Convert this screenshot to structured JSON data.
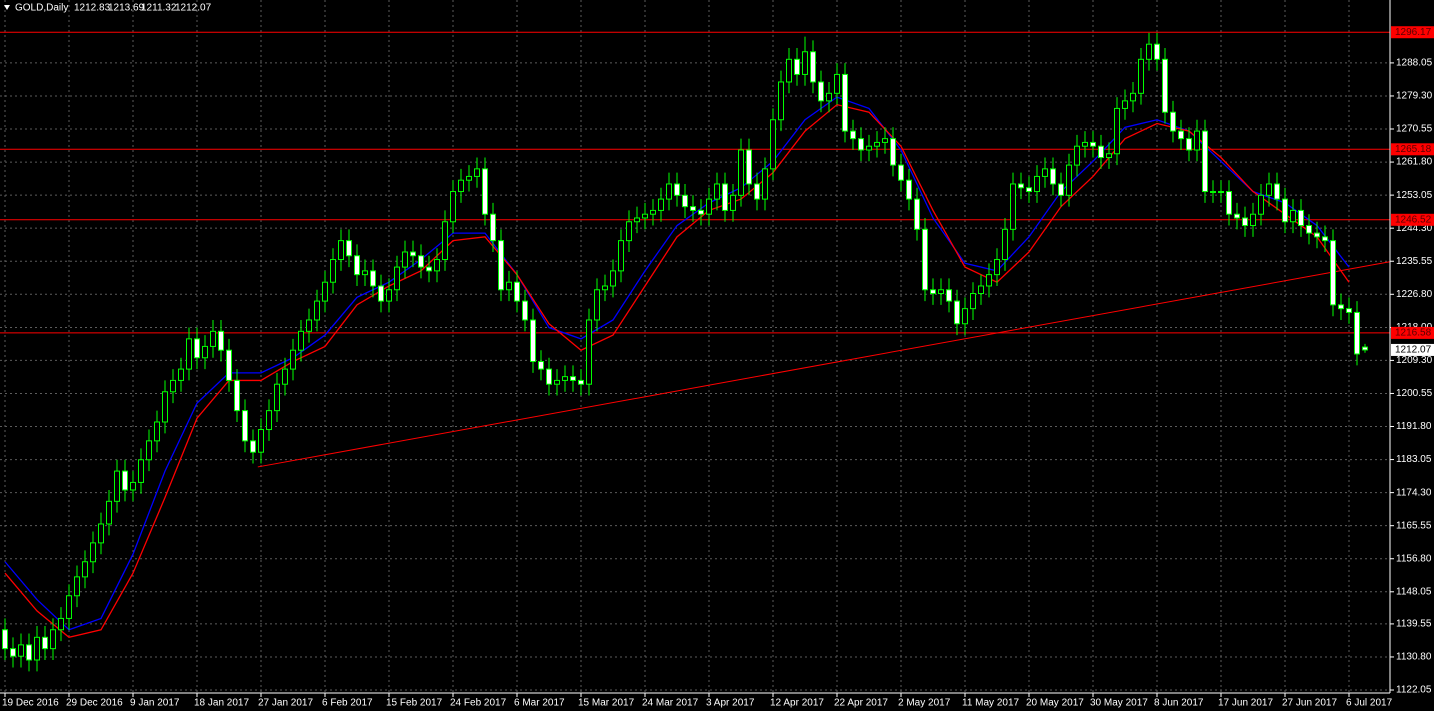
{
  "chart_data": {
    "type": "candlestick",
    "title": "GOLD,Daily",
    "categories": [
      "19 Dec 2016",
      null,
      null,
      null,
      null,
      null,
      null,
      null,
      "29 Dec 2016",
      null,
      null,
      null,
      null,
      null,
      null,
      null,
      "9 Jan 2017",
      null,
      null,
      null,
      null,
      null,
      null,
      null,
      "18 Jan 2017",
      null,
      null,
      null,
      null,
      null,
      null,
      null,
      "27 Jan 2017",
      null,
      null,
      null,
      null,
      null,
      null,
      null,
      "6 Feb 2017",
      null,
      null,
      null,
      null,
      null,
      null,
      null,
      "15 Feb 2017",
      null,
      null,
      null,
      null,
      null,
      null,
      null,
      "24 Feb 2017",
      null,
      null,
      null,
      null,
      null,
      null,
      null,
      "6 Mar 2017",
      null,
      null,
      null,
      null,
      null,
      null,
      null,
      "15 Mar 2017",
      null,
      null,
      null,
      null,
      null,
      null,
      null,
      "24 Mar 2017",
      null,
      null,
      null,
      null,
      null,
      null,
      null,
      "3 Apr 2017",
      null,
      null,
      null,
      null,
      null,
      null,
      null,
      "12 Apr 2017",
      null,
      null,
      null,
      null,
      null,
      null,
      null,
      "22 Apr 2017",
      null,
      null,
      null,
      null,
      null,
      null,
      null,
      "2 May 2017",
      null,
      null,
      null,
      null,
      null,
      null,
      null,
      "11 May 2017",
      null,
      null,
      null,
      null,
      null,
      null,
      null,
      "20 May 2017",
      null,
      null,
      null,
      null,
      null,
      null,
      null,
      "30 May 2017",
      null,
      null,
      null,
      null,
      null,
      null,
      null,
      "8 Jun 2017",
      null,
      null,
      null,
      null,
      null,
      null,
      null,
      "17 Jun 2017",
      null,
      null,
      null,
      null,
      null,
      null,
      null,
      "27 Jun 2017",
      null,
      null,
      null,
      null,
      null,
      null,
      null,
      "6 Jul 2017",
      null,
      null
    ],
    "open": [
      1138,
      1133,
      1131,
      1134,
      1130,
      1136,
      1133,
      1138,
      1141,
      1147,
      1152,
      1156,
      1161,
      1166,
      1172,
      1180,
      1175,
      1177,
      1183,
      1188,
      1193,
      1201,
      1204,
      1207,
      1215,
      1210,
      1213,
      1217,
      1212,
      1204,
      1196,
      1188,
      1185,
      1191,
      1196,
      1203,
      1207,
      1212,
      1217,
      1220,
      1225,
      1230,
      1236,
      1241,
      1237,
      1232,
      1233,
      1229,
      1225,
      1228,
      1234,
      1238,
      1237,
      1234,
      1233,
      1236,
      1246,
      1254,
      1257,
      1258,
      1260,
      1248,
      1241,
      1228,
      1230,
      1225,
      1220,
      1209,
      1207,
      1203,
      1204,
      1205,
      1204,
      1203,
      1220,
      1228,
      1229,
      1233,
      1241,
      1246,
      1247,
      1248,
      1249,
      1252,
      1256,
      1253,
      1250,
      1249,
      1248,
      1252,
      1256,
      1249,
      1253,
      1265,
      1256,
      1252,
      1260,
      1273,
      1283,
      1289,
      1285,
      1291,
      1283,
      1278,
      1280,
      1285,
      1270,
      1268,
      1265,
      1266,
      1267,
      1268,
      1261,
      1257,
      1252,
      1244,
      1228,
      1227,
      1228,
      1225,
      1219,
      1223,
      1227,
      1229,
      1232,
      1236,
      1244,
      1256,
      1255,
      1254,
      1258,
      1260,
      1256,
      1253,
      1261,
      1266,
      1267,
      1266,
      1263,
      1264,
      1276,
      1278,
      1280,
      1289,
      1293,
      1289,
      1275,
      1270,
      1268,
      1265,
      1270,
      1254,
      1254,
      1254,
      1248,
      1247,
      1245,
      1248,
      1253,
      1256,
      1252,
      1246,
      1249,
      1245,
      1243,
      1242,
      1241,
      1224,
      1223,
      1222,
      1212.83
    ],
    "high": [
      1141,
      1136,
      1137,
      1137,
      1139,
      1139,
      1141,
      1144,
      1150,
      1155,
      1159,
      1164,
      1169,
      1175,
      1183,
      1183,
      1180,
      1186,
      1191,
      1196,
      1204,
      1207,
      1210,
      1218,
      1218,
      1216,
      1220,
      1220,
      1215,
      1207,
      1199,
      1191,
      1194,
      1199,
      1206,
      1210,
      1215,
      1220,
      1223,
      1228,
      1233,
      1239,
      1244,
      1244,
      1240,
      1236,
      1236,
      1232,
      1231,
      1237,
      1241,
      1241,
      1240,
      1237,
      1239,
      1249,
      1257,
      1260,
      1261,
      1263,
      1263,
      1251,
      1244,
      1233,
      1233,
      1228,
      1223,
      1212,
      1210,
      1207,
      1208,
      1208,
      1207,
      1223,
      1231,
      1232,
      1236,
      1244,
      1249,
      1250,
      1251,
      1252,
      1255,
      1259,
      1259,
      1256,
      1253,
      1252,
      1255,
      1259,
      1259,
      1256,
      1268,
      1268,
      1259,
      1263,
      1276,
      1286,
      1292,
      1292,
      1295,
      1294,
      1286,
      1283,
      1288,
      1288,
      1273,
      1271,
      1269,
      1270,
      1271,
      1271,
      1264,
      1260,
      1255,
      1247,
      1231,
      1231,
      1231,
      1228,
      1226,
      1230,
      1232,
      1235,
      1239,
      1247,
      1259,
      1259,
      1258,
      1261,
      1263,
      1263,
      1259,
      1264,
      1269,
      1270,
      1270,
      1269,
      1267,
      1279,
      1281,
      1283,
      1292,
      1296,
      1296,
      1292,
      1278,
      1273,
      1271,
      1273,
      1273,
      1257,
      1257,
      1257,
      1251,
      1250,
      1251,
      1256,
      1259,
      1259,
      1255,
      1252,
      1252,
      1248,
      1246,
      1245,
      1244,
      1227,
      1226,
      1225,
      1213.69
    ],
    "low": [
      1130,
      1128,
      1128,
      1127,
      1127,
      1130,
      1130,
      1135,
      1138,
      1144,
      1149,
      1153,
      1158,
      1163,
      1169,
      1172,
      1172,
      1174,
      1180,
      1185,
      1190,
      1198,
      1201,
      1204,
      1207,
      1207,
      1210,
      1209,
      1201,
      1193,
      1185,
      1182,
      1182,
      1188,
      1193,
      1200,
      1204,
      1209,
      1214,
      1217,
      1222,
      1227,
      1233,
      1234,
      1229,
      1229,
      1226,
      1222,
      1222,
      1225,
      1231,
      1234,
      1231,
      1230,
      1230,
      1233,
      1243,
      1251,
      1254,
      1255,
      1245,
      1238,
      1225,
      1225,
      1222,
      1217,
      1206,
      1204,
      1200,
      1200,
      1201,
      1201,
      1200,
      1200,
      1217,
      1225,
      1226,
      1230,
      1238,
      1243,
      1244,
      1245,
      1246,
      1249,
      1250,
      1247,
      1246,
      1245,
      1245,
      1249,
      1246,
      1246,
      1250,
      1253,
      1249,
      1249,
      1257,
      1270,
      1280,
      1282,
      1282,
      1280,
      1275,
      1275,
      1277,
      1267,
      1265,
      1262,
      1262,
      1263,
      1264,
      1258,
      1254,
      1249,
      1241,
      1225,
      1224,
      1224,
      1222,
      1216,
      1216,
      1220,
      1224,
      1226,
      1229,
      1233,
      1241,
      1252,
      1251,
      1251,
      1255,
      1253,
      1250,
      1250,
      1258,
      1263,
      1263,
      1260,
      1260,
      1261,
      1273,
      1275,
      1277,
      1286,
      1286,
      1272,
      1267,
      1265,
      1262,
      1262,
      1251,
      1251,
      1251,
      1245,
      1244,
      1242,
      1242,
      1245,
      1250,
      1249,
      1243,
      1243,
      1242,
      1240,
      1239,
      1238,
      1221,
      1220,
      1219,
      1208,
      1211.32
    ],
    "close": [
      1133,
      1131,
      1134,
      1130,
      1136,
      1133,
      1138,
      1141,
      1147,
      1152,
      1156,
      1161,
      1166,
      1172,
      1180,
      1175,
      1177,
      1183,
      1188,
      1193,
      1201,
      1204,
      1207,
      1215,
      1210,
      1213,
      1217,
      1212,
      1204,
      1196,
      1188,
      1185,
      1191,
      1196,
      1203,
      1207,
      1212,
      1217,
      1220,
      1225,
      1230,
      1236,
      1241,
      1237,
      1232,
      1233,
      1229,
      1225,
      1228,
      1234,
      1238,
      1237,
      1234,
      1233,
      1236,
      1246,
      1254,
      1257,
      1258,
      1260,
      1248,
      1241,
      1228,
      1230,
      1225,
      1220,
      1209,
      1207,
      1203,
      1204,
      1205,
      1204,
      1203,
      1220,
      1228,
      1229,
      1233,
      1241,
      1246,
      1247,
      1248,
      1249,
      1252,
      1256,
      1253,
      1250,
      1249,
      1248,
      1252,
      1256,
      1249,
      1253,
      1265,
      1256,
      1252,
      1260,
      1273,
      1283,
      1289,
      1285,
      1291,
      1283,
      1278,
      1280,
      1285,
      1270,
      1268,
      1265,
      1266,
      1267,
      1268,
      1261,
      1257,
      1252,
      1244,
      1228,
      1227,
      1228,
      1225,
      1219,
      1223,
      1227,
      1229,
      1232,
      1236,
      1244,
      1256,
      1255,
      1254,
      1258,
      1260,
      1256,
      1253,
      1261,
      1266,
      1267,
      1266,
      1263,
      1264,
      1276,
      1278,
      1280,
      1289,
      1293,
      1289,
      1275,
      1270,
      1268,
      1265,
      1270,
      1254,
      1254,
      1254,
      1248,
      1247,
      1245,
      1248,
      1253,
      1256,
      1252,
      1246,
      1249,
      1245,
      1243,
      1242,
      1241,
      1224,
      1223,
      1222,
      1211,
      1212.07
    ],
    "ma_x": [
      0,
      4,
      8,
      12,
      16,
      20,
      24,
      28,
      32,
      36,
      40,
      44,
      48,
      52,
      56,
      60,
      64,
      68,
      72,
      76,
      80,
      84,
      88,
      92,
      96,
      100,
      104,
      108,
      112,
      116,
      120,
      124,
      128,
      132,
      136,
      140,
      144,
      148,
      152,
      156,
      160,
      164,
      168
    ],
    "moving_averages": [
      {
        "color": "#0000ff",
        "values": [
          1156,
          1146,
          1138,
          1141,
          1158,
          1180,
          1198,
          1206,
          1206,
          1210,
          1216,
          1226,
          1230,
          1236,
          1243,
          1243,
          1232,
          1218,
          1215,
          1220,
          1233,
          1245,
          1251,
          1255,
          1262,
          1273,
          1279,
          1276,
          1265,
          1247,
          1235,
          1233,
          1242,
          1254,
          1262,
          1271,
          1273,
          1270,
          1262,
          1254,
          1251,
          1245,
          1234
        ]
      },
      {
        "color": "#ff0000",
        "values": [
          1153,
          1143,
          1136,
          1138,
          1153,
          1173,
          1194,
          1204,
          1204,
          1209,
          1213,
          1224,
          1229,
          1233,
          1241,
          1242,
          1232,
          1219,
          1212,
          1216,
          1229,
          1242,
          1249,
          1252,
          1259,
          1270,
          1277,
          1275,
          1266,
          1249,
          1234,
          1230,
          1238,
          1250,
          1258,
          1268,
          1272,
          1270,
          1263,
          1254,
          1248,
          1242,
          1230
        ]
      }
    ],
    "levels": [
      1296.17,
      1265.18,
      1246.52,
      1216.58
    ],
    "level_color": "#ff0000",
    "trendline": [
      [
        31.6,
        1181.1
      ],
      [
        173.1,
        1235.4
      ]
    ],
    "ylim": [
      1121.26,
      1304.7
    ],
    "yticks": [
      1122.05,
      {
        "value": 1130.8,
        "label": "1130.80"
      },
      1139.55,
      1148.05,
      {
        "value": 1156.8,
        "label": "1156.80"
      },
      1165.55,
      {
        "value": 1174.3,
        "label": "1174.30"
      },
      1183.05,
      {
        "value": 1191.8,
        "label": "1191.80"
      },
      1200.55,
      {
        "value": 1209.3,
        "label": "1209.30"
      },
      {
        "value": 1218,
        "label": "1218.00"
      },
      {
        "value": 1226.8,
        "label": "1226.80"
      },
      1235.55,
      {
        "value": 1244.3,
        "label": "1244.30"
      },
      1253.05,
      {
        "value": 1261.8,
        "label": "1261.80"
      },
      1270.55,
      {
        "value": 1279.3,
        "label": "1279.30"
      },
      1288.05
    ],
    "grid": true,
    "candle_stroke": "#00ff00",
    "bull_fill": "#000000",
    "bear_fill": "#ffffff"
  }
}
